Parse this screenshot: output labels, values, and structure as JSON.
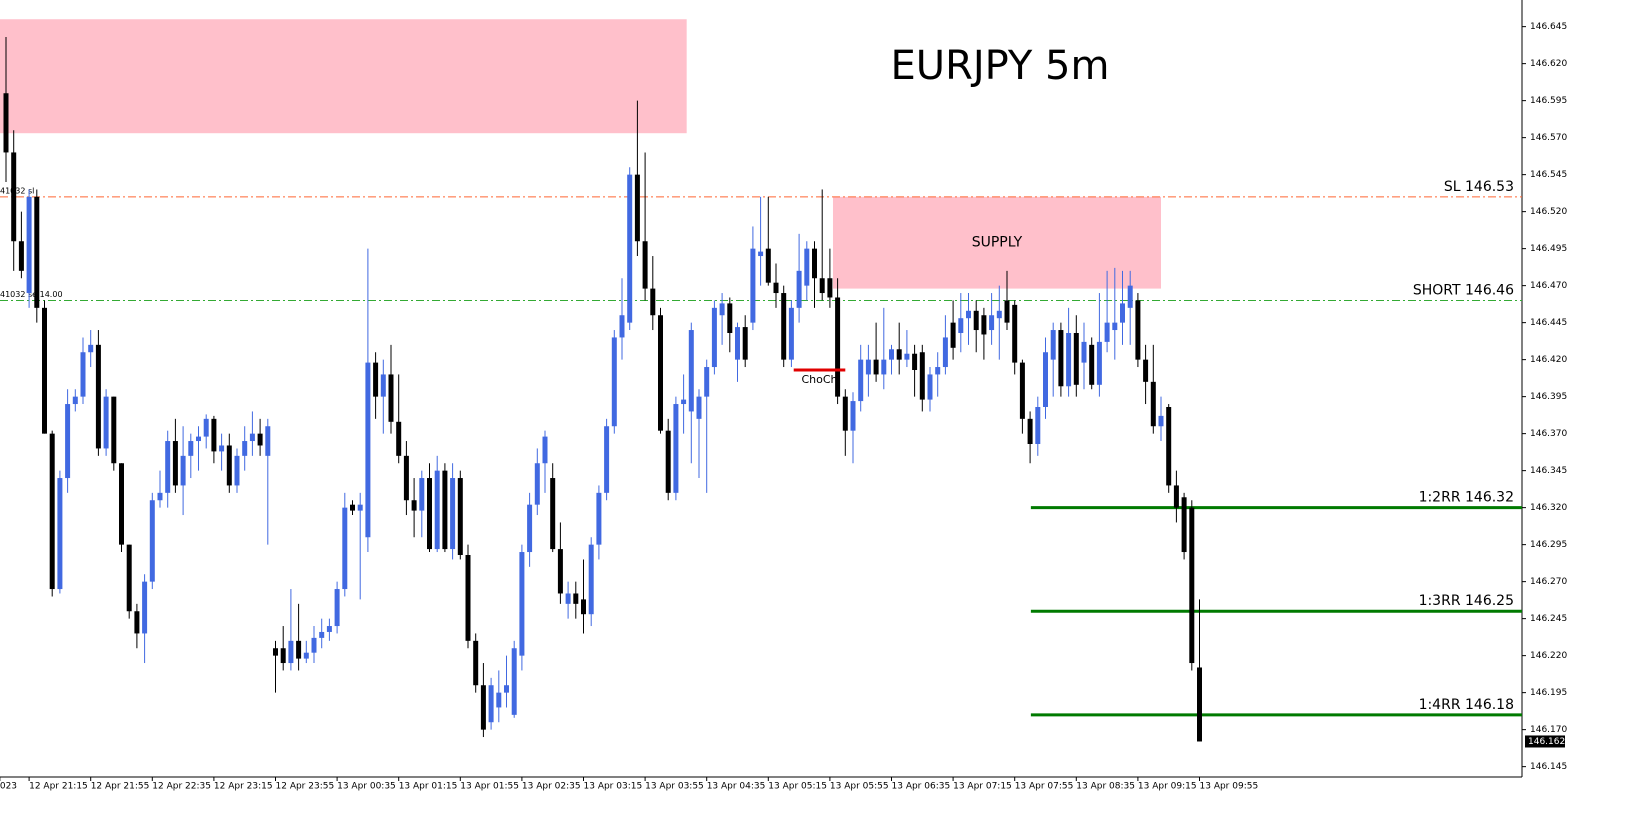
{
  "chart_data": {
    "type": "candlestick",
    "title": "EURJPY 5m",
    "up_color": "#4169e1",
    "down_color": "#000000",
    "ylim": [
      146.138,
      146.663
    ],
    "yticks": [
      146.645,
      {
        "value": 146.62,
        "label": "146.620"
      },
      146.595,
      {
        "value": 146.57,
        "label": "146.570"
      },
      146.545,
      {
        "value": 146.52,
        "label": "146.520"
      },
      146.495,
      {
        "value": 146.47,
        "label": "146.470"
      },
      146.445,
      {
        "value": 146.42,
        "label": "146.420"
      },
      146.395,
      {
        "value": 146.37,
        "label": "146.370"
      },
      146.345,
      {
        "value": 146.32,
        "label": "146.320"
      },
      146.295,
      {
        "value": 146.27,
        "label": "146.270"
      },
      146.245,
      {
        "value": 146.22,
        "label": "146.220"
      },
      146.195,
      {
        "value": 146.17,
        "label": "146.170"
      },
      146.145
    ],
    "xticks": [
      {
        "value": -0.8,
        "label": "023"
      },
      {
        "value": 3,
        "label": "12 Apr 21:15"
      },
      {
        "value": 11,
        "label": "12 Apr 21:55"
      },
      {
        "value": 19,
        "label": "12 Apr 22:35"
      },
      {
        "value": 27,
        "label": "12 Apr 23:15"
      },
      {
        "value": 35,
        "label": "12 Apr 23:55"
      },
      {
        "value": 43,
        "label": "13 Apr 00:35"
      },
      {
        "value": 51,
        "label": "13 Apr 01:15"
      },
      {
        "value": 59,
        "label": "13 Apr 01:55"
      },
      {
        "value": 67,
        "label": "13 Apr 02:35"
      },
      {
        "value": 75,
        "label": "13 Apr 03:15"
      },
      {
        "value": 83,
        "label": "13 Apr 03:55"
      },
      {
        "value": 91,
        "label": "13 Apr 04:35"
      },
      {
        "value": 99,
        "label": "13 Apr 05:15"
      },
      {
        "value": 107,
        "label": "13 Apr 05:55"
      },
      {
        "value": 115,
        "label": "13 Apr 06:35"
      },
      {
        "value": 123,
        "label": "13 Apr 07:15"
      },
      {
        "value": 131,
        "label": "13 Apr 07:55"
      },
      {
        "value": 139,
        "label": "13 Apr 08:35"
      },
      {
        "value": 147,
        "label": "13 Apr 09:15"
      },
      {
        "value": 155,
        "label": "13 Apr 09:55"
      }
    ],
    "last_price": 146.162,
    "candles": [
      [
        146.6,
        146.638,
        146.54,
        146.56
      ],
      [
        146.56,
        146.575,
        146.48,
        146.5
      ],
      [
        146.5,
        146.52,
        146.475,
        146.48
      ],
      [
        146.465,
        146.535,
        146.455,
        146.53
      ],
      [
        146.53,
        146.535,
        146.445,
        146.455
      ],
      [
        146.455,
        146.46,
        146.37,
        146.37
      ],
      [
        146.37,
        146.372,
        146.26,
        146.265
      ],
      [
        146.265,
        146.345,
        146.262,
        146.34
      ],
      [
        146.34,
        146.4,
        146.33,
        146.39
      ],
      [
        146.39,
        146.4,
        146.385,
        146.395
      ],
      [
        146.395,
        146.435,
        146.39,
        146.425
      ],
      [
        146.425,
        146.44,
        146.415,
        146.43
      ],
      [
        146.43,
        146.44,
        146.355,
        146.36
      ],
      [
        146.36,
        146.4,
        146.355,
        146.395
      ],
      [
        146.395,
        146.395,
        146.345,
        146.35
      ],
      [
        146.35,
        146.35,
        146.29,
        146.295
      ],
      [
        146.295,
        146.295,
        146.245,
        146.25
      ],
      [
        146.25,
        146.255,
        146.225,
        146.235
      ],
      [
        146.235,
        146.275,
        146.215,
        146.27
      ],
      [
        146.27,
        146.33,
        146.265,
        146.325
      ],
      [
        146.325,
        146.345,
        146.32,
        146.33
      ],
      [
        146.33,
        146.372,
        146.32,
        146.365
      ],
      [
        146.365,
        146.38,
        146.33,
        146.335
      ],
      [
        146.335,
        146.375,
        146.315,
        146.355
      ],
      [
        146.355,
        146.37,
        146.34,
        146.365
      ],
      [
        146.365,
        146.375,
        146.345,
        146.368
      ],
      [
        146.368,
        146.383,
        146.36,
        146.38
      ],
      [
        146.38,
        146.382,
        146.35,
        146.358
      ],
      [
        146.358,
        146.37,
        146.345,
        146.362
      ],
      [
        146.362,
        146.37,
        146.33,
        146.335
      ],
      [
        146.335,
        146.36,
        146.33,
        146.355
      ],
      [
        146.355,
        146.375,
        146.345,
        146.365
      ],
      [
        146.365,
        146.385,
        146.355,
        146.37
      ],
      [
        146.37,
        146.38,
        146.355,
        146.362
      ],
      [
        146.355,
        146.38,
        146.295,
        146.375
      ],
      [
        146.225,
        146.23,
        146.195,
        146.22
      ],
      [
        146.225,
        146.24,
        146.21,
        146.215
      ],
      [
        146.215,
        146.265,
        146.21,
        146.23
      ],
      [
        146.23,
        146.255,
        146.21,
        146.218
      ],
      [
        146.218,
        146.23,
        146.215,
        146.222
      ],
      [
        146.222,
        146.24,
        146.215,
        146.232
      ],
      [
        146.232,
        146.245,
        146.225,
        146.236
      ],
      [
        146.236,
        146.245,
        146.23,
        146.24
      ],
      [
        146.24,
        146.27,
        146.235,
        146.265
      ],
      [
        146.265,
        146.33,
        146.26,
        146.32
      ],
      [
        146.322,
        146.325,
        146.315,
        146.318
      ],
      [
        146.318,
        146.33,
        146.258,
        146.322
      ],
      [
        146.3,
        146.495,
        146.29,
        146.418
      ],
      [
        146.418,
        146.425,
        146.38,
        146.395
      ],
      [
        146.395,
        146.42,
        146.37,
        146.41
      ],
      [
        146.41,
        146.43,
        146.37,
        146.378
      ],
      [
        146.378,
        146.41,
        146.35,
        146.355
      ],
      [
        146.355,
        146.365,
        146.315,
        146.325
      ],
      [
        146.325,
        146.34,
        146.3,
        146.318
      ],
      [
        146.318,
        146.345,
        146.3,
        146.34
      ],
      [
        146.34,
        146.35,
        146.29,
        146.292
      ],
      [
        146.292,
        146.355,
        146.29,
        146.345
      ],
      [
        146.345,
        146.35,
        146.29,
        146.292
      ],
      [
        146.292,
        146.35,
        146.285,
        146.34
      ],
      [
        146.34,
        146.345,
        146.285,
        146.288
      ],
      [
        146.288,
        146.295,
        146.225,
        146.23
      ],
      [
        146.23,
        146.235,
        146.195,
        146.2
      ],
      [
        146.2,
        146.215,
        146.165,
        146.17
      ],
      [
        146.175,
        146.205,
        146.17,
        146.2
      ],
      [
        146.185,
        146.21,
        146.175,
        146.195
      ],
      [
        146.195,
        146.22,
        146.185,
        146.2
      ],
      [
        146.18,
        146.23,
        146.178,
        146.225
      ],
      [
        146.22,
        146.295,
        146.21,
        146.29
      ],
      [
        146.29,
        146.33,
        146.28,
        146.322
      ],
      [
        146.322,
        146.36,
        146.315,
        146.35
      ],
      [
        146.35,
        146.372,
        146.33,
        146.368
      ],
      [
        146.34,
        146.35,
        146.29,
        146.292
      ],
      [
        146.292,
        146.31,
        146.255,
        146.262
      ],
      [
        146.255,
        146.27,
        146.245,
        146.262
      ],
      [
        146.262,
        146.27,
        146.245,
        146.255
      ],
      [
        146.258,
        146.285,
        146.235,
        146.248
      ],
      [
        146.248,
        146.3,
        146.24,
        146.295
      ],
      [
        146.295,
        146.335,
        146.285,
        146.33
      ],
      [
        146.33,
        146.38,
        146.325,
        146.375
      ],
      [
        146.375,
        146.44,
        146.37,
        146.435
      ],
      [
        146.435,
        146.475,
        146.42,
        146.45
      ],
      [
        146.445,
        146.55,
        146.44,
        146.545
      ],
      [
        146.545,
        146.595,
        146.49,
        146.5
      ],
      [
        146.5,
        146.56,
        146.46,
        146.468
      ],
      [
        146.468,
        146.49,
        146.44,
        146.45
      ],
      [
        146.45,
        146.455,
        146.37,
        146.372
      ],
      [
        146.372,
        146.38,
        146.325,
        146.33
      ],
      [
        146.33,
        146.395,
        146.325,
        146.39
      ],
      [
        146.39,
        146.41,
        146.37,
        146.393
      ],
      [
        146.385,
        146.445,
        146.35,
        146.44
      ],
      [
        146.38,
        146.4,
        146.34,
        146.395
      ],
      [
        146.395,
        146.42,
        146.33,
        146.415
      ],
      [
        146.415,
        146.46,
        146.41,
        146.455
      ],
      [
        146.45,
        146.465,
        146.43,
        146.458
      ],
      [
        146.458,
        146.462,
        146.425,
        146.438
      ],
      [
        146.42,
        146.445,
        146.405,
        146.442
      ],
      [
        146.442,
        146.45,
        146.415,
        146.42
      ],
      [
        146.445,
        146.51,
        146.44,
        146.495
      ],
      [
        146.49,
        146.53,
        146.47,
        146.493
      ],
      [
        146.495,
        146.53,
        146.47,
        146.472
      ],
      [
        146.472,
        146.485,
        146.455,
        146.465
      ],
      [
        146.465,
        146.47,
        146.415,
        146.42
      ],
      [
        146.42,
        146.46,
        146.415,
        146.455
      ],
      [
        146.455,
        146.505,
        146.445,
        146.48
      ],
      [
        146.47,
        146.5,
        146.46,
        146.495
      ],
      [
        146.495,
        146.5,
        146.455,
        146.475
      ],
      [
        146.475,
        146.535,
        146.46,
        146.465
      ],
      [
        146.475,
        146.495,
        146.455,
        146.462
      ],
      [
        146.462,
        146.475,
        146.39,
        146.395
      ],
      [
        146.395,
        146.4,
        146.355,
        146.372
      ],
      [
        146.372,
        146.398,
        146.35,
        146.392
      ],
      [
        146.392,
        146.43,
        146.385,
        146.42
      ],
      [
        146.41,
        146.43,
        146.395,
        146.42
      ],
      [
        146.42,
        146.445,
        146.405,
        146.41
      ],
      [
        146.41,
        146.455,
        146.4,
        146.42
      ],
      [
        146.42,
        146.43,
        146.41,
        146.427
      ],
      [
        146.427,
        146.445,
        146.41,
        146.42
      ],
      [
        146.42,
        146.44,
        146.415,
        146.424
      ],
      [
        146.424,
        146.43,
        146.395,
        146.413
      ],
      [
        146.425,
        146.43,
        146.385,
        146.393
      ],
      [
        146.393,
        146.415,
        146.385,
        146.41
      ],
      [
        146.41,
        146.425,
        146.395,
        146.415
      ],
      [
        146.415,
        146.45,
        146.41,
        146.435
      ],
      [
        146.445,
        146.46,
        146.42,
        146.428
      ],
      [
        146.438,
        146.465,
        146.425,
        146.448
      ],
      [
        146.448,
        146.465,
        146.43,
        146.453
      ],
      [
        146.453,
        146.46,
        146.425,
        146.44
      ],
      [
        146.45,
        146.455,
        146.42,
        146.437
      ],
      [
        146.44,
        146.465,
        146.43,
        146.45
      ],
      [
        146.448,
        146.47,
        146.42,
        146.453
      ],
      [
        146.46,
        146.48,
        146.44,
        146.445
      ],
      [
        146.457,
        146.46,
        146.41,
        146.418
      ],
      [
        146.418,
        146.42,
        146.37,
        146.38
      ],
      [
        146.38,
        146.385,
        146.35,
        146.363
      ],
      [
        146.363,
        146.395,
        146.355,
        146.388
      ],
      [
        146.388,
        146.435,
        146.38,
        146.425
      ],
      [
        146.42,
        146.445,
        146.395,
        146.44
      ],
      [
        146.44,
        146.445,
        146.395,
        146.402
      ],
      [
        146.402,
        146.455,
        146.395,
        146.438
      ],
      [
        146.438,
        146.45,
        146.395,
        146.403
      ],
      [
        146.418,
        146.445,
        146.4,
        146.432
      ],
      [
        146.43,
        146.435,
        146.4,
        146.403
      ],
      [
        146.403,
        146.465,
        146.395,
        146.432
      ],
      [
        146.432,
        146.48,
        146.425,
        146.445
      ],
      [
        146.44,
        146.482,
        146.42,
        146.445
      ],
      [
        146.445,
        146.48,
        146.43,
        146.458
      ],
      [
        146.455,
        146.48,
        146.43,
        146.47
      ],
      [
        146.46,
        146.465,
        146.415,
        146.42
      ],
      [
        146.42,
        146.43,
        146.39,
        146.405
      ],
      [
        146.405,
        146.43,
        146.37,
        146.375
      ],
      [
        146.375,
        146.395,
        146.365,
        146.382
      ],
      [
        146.388,
        146.39,
        146.33,
        146.335
      ],
      [
        146.335,
        146.345,
        146.31,
        146.32
      ],
      [
        146.327,
        146.33,
        146.285,
        146.29
      ],
      [
        146.32,
        146.325,
        146.21,
        146.215
      ],
      [
        146.212,
        146.258,
        146.162,
        146.162
      ]
    ],
    "zones": [
      {
        "ylim": [
          146.573,
          146.65
        ],
        "xlim": [
          -1,
          88.4
        ],
        "color": "#ffc0cb"
      },
      {
        "ylim": [
          146.468,
          146.53
        ],
        "xlim": [
          107.4,
          150
        ],
        "color": "#ffc0cb",
        "label": "SUPPLY",
        "label_color": "#e0359a"
      }
    ],
    "levels": [
      {
        "label": "SL 146.53",
        "value": 146.53,
        "color": "#ff6633",
        "text_color": "#228b22",
        "style": "dashdot",
        "xstart": -1
      },
      {
        "label": "SHORT 146.46",
        "value": 146.46,
        "color": "#33aa33",
        "text_color": "#228b22",
        "style": "dashdot",
        "xstart": -1
      },
      {
        "label": "1:2RR 146.32",
        "value": 146.32,
        "color": "#007a00",
        "text_color": "#228b22",
        "style": "solid",
        "xstart": 133.1
      },
      {
        "label": "1:3RR 146.25",
        "value": 146.25,
        "color": "#007a00",
        "text_color": "#228b22",
        "style": "solid",
        "xstart": 133.1
      },
      {
        "label": "1:4RR 146.18",
        "value": 146.18,
        "color": "#007a00",
        "text_color": "#228b22",
        "style": "solid",
        "xstart": 133.1
      }
    ],
    "choch": {
      "label": "ChoCh",
      "value": 146.413,
      "xlim": [
        102.3,
        109
      ],
      "color": "#e00000"
    },
    "corner_notes": [
      "41032 sl",
      "41032 se 14.00"
    ]
  }
}
